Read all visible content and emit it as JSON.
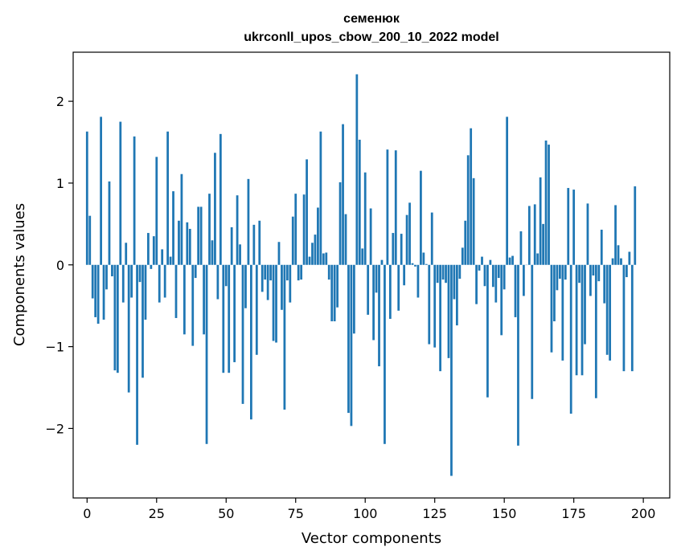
{
  "chart_data": {
    "type": "bar",
    "title": "семенюк",
    "subtitle": "ukrconll_upos_cbow_200_10_2022 model",
    "xlabel": "Vector components",
    "ylabel": "Components values",
    "xlim": [
      -5,
      209.5
    ],
    "ylim": [
      -2.85,
      2.6
    ],
    "xticks": [
      0,
      25,
      50,
      75,
      100,
      125,
      150,
      175,
      200
    ],
    "yticks": [
      -2,
      -1,
      0,
      1,
      2
    ],
    "bar_color": "#1f77b4",
    "grid": false,
    "values": [
      1.63,
      0.6,
      -0.41,
      -0.64,
      -0.72,
      1.81,
      -0.67,
      -0.3,
      1.02,
      -0.14,
      -1.29,
      -1.32,
      1.75,
      -0.46,
      0.27,
      -1.56,
      -0.4,
      1.57,
      -2.2,
      -0.21,
      -1.38,
      -0.67,
      0.39,
      -0.05,
      0.35,
      1.32,
      -0.46,
      0.19,
      -0.4,
      1.63,
      0.1,
      0.9,
      -0.65,
      0.54,
      1.11,
      -0.85,
      0.52,
      0.44,
      -0.99,
      -0.16,
      0.71,
      0.71,
      -0.85,
      -2.19,
      0.87,
      0.3,
      1.37,
      -0.42,
      1.6,
      -1.32,
      -0.26,
      -1.32,
      0.46,
      -1.19,
      0.85,
      0.25,
      -1.7,
      -0.53,
      1.05,
      -1.89,
      0.49,
      -1.1,
      0.54,
      -0.33,
      -0.18,
      -0.43,
      -0.19,
      -0.93,
      -0.95,
      0.28,
      -0.55,
      -1.77,
      -0.19,
      -0.46,
      0.59,
      0.87,
      -0.19,
      -0.18,
      0.86,
      1.29,
      0.1,
      0.27,
      0.37,
      0.7,
      1.63,
      0.14,
      0.15,
      -0.18,
      -0.69,
      -0.69,
      -0.52,
      1.01,
      1.72,
      0.62,
      -1.81,
      -1.97,
      -0.84,
      2.33,
      1.53,
      0.2,
      1.13,
      -0.61,
      0.69,
      -0.92,
      -0.34,
      -1.24,
      0.06,
      -2.19,
      1.41,
      -0.66,
      0.39,
      1.4,
      -0.56,
      0.38,
      -0.25,
      0.61,
      0.76,
      0.02,
      -0.02,
      -0.4,
      1.15,
      0.15,
      0.01,
      -0.97,
      0.64,
      -1.01,
      -0.22,
      -1.3,
      -0.18,
      -0.22,
      -1.14,
      -2.58,
      -0.42,
      -0.74,
      -0.17,
      0.21,
      0.54,
      1.34,
      1.67,
      1.06,
      -0.48,
      -0.07,
      0.1,
      -0.26,
      -1.62,
      0.06,
      -0.27,
      -0.46,
      -0.16,
      -0.86,
      -0.3,
      1.81,
      0.09,
      0.11,
      -0.64,
      -2.21,
      0.41,
      -0.38,
      0.0,
      0.72,
      -1.64,
      0.74,
      0.14,
      1.07,
      0.5,
      1.52,
      1.47,
      -1.07,
      -0.69,
      -0.31,
      -0.17,
      -1.17,
      -0.18,
      0.94,
      -1.82,
      0.92,
      -1.35,
      -0.22,
      -1.35,
      -0.97,
      0.75,
      -0.38,
      -0.13,
      -1.63,
      -0.2,
      0.43,
      -0.47,
      -1.1,
      -1.17,
      0.08,
      0.73,
      0.24,
      0.08,
      -1.3,
      -0.15,
      0.16,
      -1.3,
      0.96
    ]
  }
}
